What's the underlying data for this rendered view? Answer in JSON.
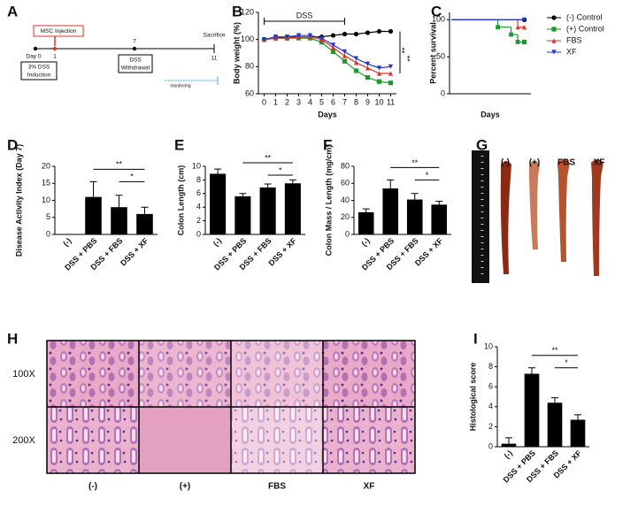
{
  "panel_A": {
    "panel": "A",
    "injection": "MSC Injection",
    "days": [
      "Day 0",
      "1",
      "7",
      "11"
    ],
    "sacrifice": "Sacrifice",
    "induction": [
      "3% DSS",
      "Induction"
    ],
    "withdrawal": [
      "DSS",
      "Withdrawal"
    ],
    "monitoring": "monitoring"
  },
  "panel_G": {
    "panel": "G",
    "labels": [
      "(-)",
      "(+)",
      "FBS",
      "XF"
    ]
  },
  "panel_H": {
    "panel": "H",
    "rows": [
      "100X",
      "200X"
    ],
    "columns": [
      "(-)",
      "(+)",
      "FBS",
      "XF"
    ]
  },
  "chart_data": [
    {
      "type": "line",
      "panel": "B",
      "x_label": "Days",
      "y_label": "Body weight (%)",
      "annotations": [
        "DSS",
        "**",
        "**"
      ],
      "x": [
        0,
        1,
        2,
        3,
        4,
        5,
        6,
        7,
        8,
        9,
        10,
        11
      ],
      "xlim": [
        -0.5,
        11.5
      ],
      "xticks": [
        0,
        1,
        2,
        3,
        4,
        5,
        6,
        7,
        8,
        9,
        10,
        11
      ],
      "ylim": [
        60,
        120
      ],
      "yticks": [
        60,
        80,
        100,
        120
      ],
      "series": [
        {
          "name": "(-) Control",
          "color": "#000000",
          "marker": "circle",
          "values": [
            100,
            101,
            102,
            102,
            102,
            102,
            103,
            104,
            104,
            105,
            106,
            106
          ]
        },
        {
          "name": "(+) Control",
          "color": "#1a9a2a",
          "marker": "square",
          "values": [
            100,
            101,
            101,
            101,
            101,
            98,
            91,
            84,
            77,
            72,
            69,
            68
          ]
        },
        {
          "name": "FBS",
          "color": "#e0302a",
          "marker": "triangle-up",
          "values": [
            100,
            101,
            101,
            102,
            102,
            100,
            94,
            88,
            83,
            79,
            75,
            75
          ]
        },
        {
          "name": "XF",
          "color": "#2535c8",
          "marker": "triangle-down",
          "values": [
            100,
            102,
            102,
            103,
            103,
            101,
            96,
            91,
            86,
            82,
            79,
            80
          ]
        }
      ]
    },
    {
      "type": "step",
      "panel": "C",
      "x_label": "Days",
      "y_label": "Percent survival",
      "x": [
        0,
        7,
        9,
        10,
        11
      ],
      "xlim": [
        -0.3,
        12
      ],
      "ylim": [
        0,
        110
      ],
      "yticks": [
        0,
        50,
        100
      ],
      "series": [
        {
          "name": "(-) Control",
          "color": "#000000",
          "marker": "circle",
          "values": [
            100,
            100,
            100,
            100,
            100
          ]
        },
        {
          "name": "(+) Control",
          "color": "#1a9a2a",
          "marker": "square",
          "values": [
            100,
            90,
            80,
            70,
            70
          ]
        },
        {
          "name": "FBS",
          "color": "#e0302a",
          "marker": "triangle-up",
          "values": [
            100,
            100,
            100,
            90,
            90
          ]
        },
        {
          "name": "XF",
          "color": "#2535c8",
          "marker": "triangle-down",
          "values": [
            100,
            100,
            100,
            100,
            100
          ]
        }
      ]
    },
    {
      "type": "bar",
      "panel": "D",
      "y_label": "Disease Activity Index (Day 7)",
      "annotations": [
        "**",
        "*"
      ],
      "color": "#000000",
      "categories": [
        "(-)",
        "DSS + PBS",
        "DSS + FBS",
        "DSS + XF"
      ],
      "values": [
        0,
        11,
        8,
        6
      ],
      "errors": [
        0,
        4.5,
        3.5,
        2
      ],
      "ylim": [
        0,
        20
      ],
      "yticks": [
        0,
        5,
        10,
        15,
        20
      ]
    },
    {
      "type": "bar",
      "panel": "E",
      "y_label": "Colon Length (cm)",
      "annotations": [
        "**",
        "*"
      ],
      "color": "#000000",
      "categories": [
        "(-)",
        "DSS + PBS",
        "DSS + FBS",
        "DSS + XF"
      ],
      "values": [
        8.9,
        5.6,
        6.9,
        7.5
      ],
      "errors": [
        0.7,
        0.4,
        0.5,
        0.5
      ],
      "ylim": [
        0,
        10
      ],
      "yticks": [
        0,
        2,
        4,
        6,
        8,
        10
      ]
    },
    {
      "type": "bar",
      "panel": "F",
      "y_label": "Colon Mass / Length (mg/cm)",
      "annotations": [
        "**",
        "*"
      ],
      "color": "#000000",
      "categories": [
        "(-)",
        "DSS + PBS",
        "DSS + FBS",
        "DSS + XF"
      ],
      "values": [
        26,
        54,
        41,
        35
      ],
      "errors": [
        4,
        10,
        7,
        4
      ],
      "ylim": [
        0,
        80
      ],
      "yticks": [
        0,
        20,
        40,
        60,
        80
      ]
    },
    {
      "type": "bar",
      "panel": "I",
      "y_label": "Histological score",
      "annotations": [
        "**",
        "*"
      ],
      "color": "#000000",
      "categories": [
        "(-)",
        "DSS + PBS",
        "DSS + FBS",
        "DSS + XF"
      ],
      "values": [
        0.3,
        7.3,
        4.4,
        2.7
      ],
      "errors": [
        0.6,
        0.6,
        0.5,
        0.5
      ],
      "ylim": [
        0,
        10
      ],
      "yticks": [
        0,
        2,
        4,
        6,
        8,
        10
      ]
    }
  ]
}
